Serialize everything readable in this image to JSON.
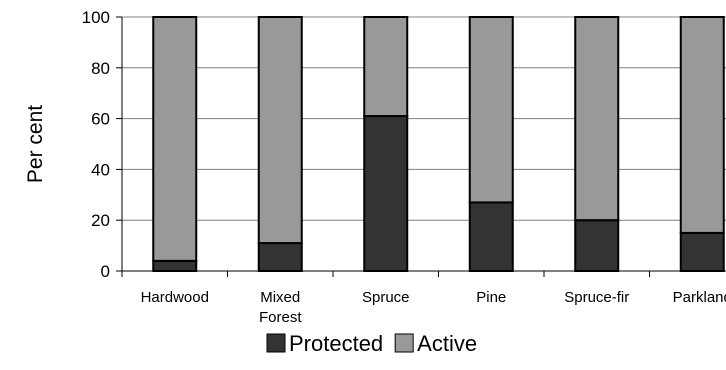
{
  "chart_data": {
    "type": "bar",
    "stacked": true,
    "title": "",
    "xlabel": "",
    "ylabel": "Per cent",
    "ylim": [
      0,
      100
    ],
    "yticks": [
      0,
      20,
      40,
      60,
      80,
      100
    ],
    "grid": true,
    "legend_position": "bottom",
    "categories": [
      [
        "Hardwood"
      ],
      [
        "Mixed",
        "Forest"
      ],
      [
        "Spruce"
      ],
      [
        "Pine"
      ],
      [
        "Spruce-fir"
      ],
      [
        "Parkland"
      ]
    ],
    "series": [
      {
        "name": "Protected",
        "color": "#333333",
        "values": [
          4,
          11,
          61,
          27,
          20,
          15
        ]
      },
      {
        "name": "Active",
        "color": "#999999",
        "values": [
          96,
          89,
          39,
          73,
          80,
          85
        ]
      }
    ]
  }
}
